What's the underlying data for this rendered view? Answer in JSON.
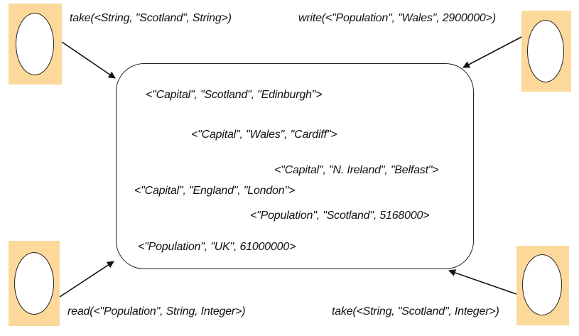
{
  "operations": {
    "top_left": "take(<String, \"Scotland\", String>)",
    "top_right": "write(<\"Population\", \"Wales\", 2900000>)",
    "bottom_left": "read(<\"Population\", String, Integer>)",
    "bottom_right": "take(<String, \"Scotland\", Integer>)"
  },
  "tuples": [
    "<\"Capital\", \"Scotland\", \"Edinburgh\">",
    "<\"Capital\", \"Wales\", \"Cardiff\">",
    "<\"Capital\", \"N. Ireland\", \"Belfast\">",
    "<\"Capital\", \"England\", \"London\">",
    "<\"Population\", \"Scotland\", 5168000>",
    "<\"Population\", \"UK\", 61000000>"
  ],
  "colors": {
    "agent_fill": "#fcd99a",
    "stroke": "#222222",
    "text": "#111111"
  }
}
